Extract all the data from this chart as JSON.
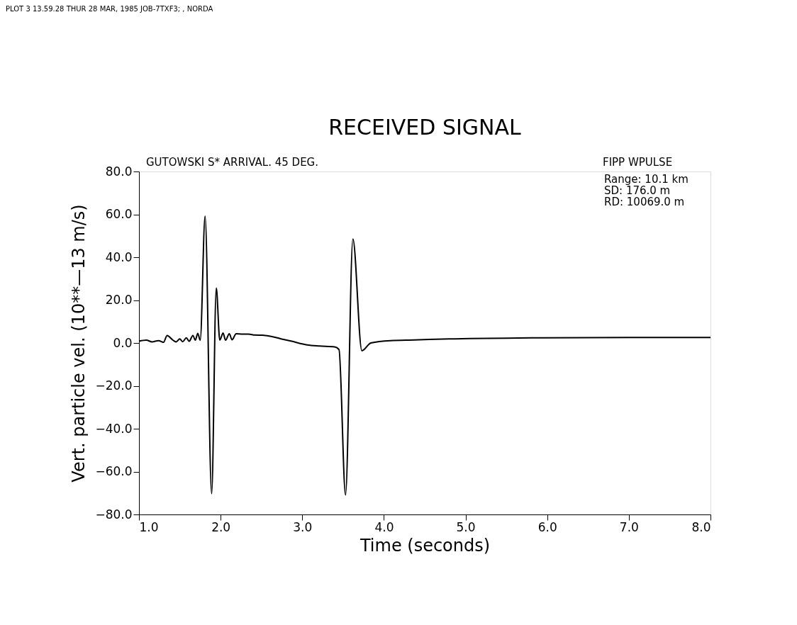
{
  "chart_data": {
    "type": "line",
    "title": "RECEIVED SIGNAL",
    "subtitle": "GUTOWSKI S* ARRIVAL. 45 DEG.",
    "xlabel": "Time (seconds)",
    "ylabel": "Vert. particle vel. (10**—13 m/s)",
    "annotations": [
      "PLOT 3    13.59.28  THUR 28 MAR, 1985    JOB-7TXF3;  ,  NORDA",
      "FIPP  WPULSE",
      "Range:  10.1 km",
      "SD:     176.0 m",
      "RD:  10069.0 m"
    ],
    "series": [
      {
        "color": "#000000",
        "x": [
          1.0,
          1.09,
          1.16,
          1.24,
          1.3,
          1.345,
          1.41,
          1.455,
          1.5,
          1.535,
          1.58,
          1.615,
          1.66,
          1.69,
          1.72,
          1.75,
          1.81,
          1.89,
          1.947,
          1.99,
          2.03,
          2.06,
          2.106,
          2.14,
          2.19,
          2.27,
          2.34,
          2.42,
          2.51,
          2.63,
          2.74,
          2.86,
          3.06,
          3.21,
          3.395,
          3.45,
          3.53,
          3.62,
          3.73,
          3.84,
          4.08,
          4.37,
          4.8,
          5.81,
          7.0,
          8.0
        ],
        "values": [
          0.8,
          1.3,
          0.5,
          1.1,
          0.3,
          3.5,
          1.5,
          0.5,
          1.9,
          0.6,
          2.4,
          0.8,
          3.5,
          1.3,
          4.5,
          1.3,
          59.2,
          -70.3,
          25.6,
          1.3,
          4.6,
          1.3,
          4.3,
          1.5,
          4.3,
          4.1,
          4.1,
          3.7,
          3.6,
          3.0,
          1.9,
          0.9,
          -0.9,
          -1.4,
          -1.8,
          -3.1,
          -70.9,
          48.5,
          -3.6,
          0.0,
          1.1,
          1.4,
          1.9,
          2.4,
          2.6,
          2.6
        ]
      }
    ],
    "xlim": [
      1.0,
      8.0
    ],
    "xticks": [
      {
        "value": 1,
        "label": "1.0"
      },
      {
        "value": 2,
        "label": "2.0"
      },
      {
        "value": 3,
        "label": "3.0"
      },
      {
        "value": 4,
        "label": "4.0"
      },
      {
        "value": 5,
        "label": "5.0"
      },
      {
        "value": 6,
        "label": "6.0"
      },
      {
        "value": 7,
        "label": "7.0"
      },
      {
        "value": 8,
        "label": "8.0"
      }
    ],
    "ylim": [
      -80.0,
      80.0
    ],
    "yticks": [
      {
        "value": -80,
        "label": "−80.0"
      },
      {
        "value": -60,
        "label": "−60.0"
      },
      {
        "value": -40,
        "label": "−40.0"
      },
      {
        "value": -20,
        "label": "−20.0"
      },
      {
        "value": 0,
        "label": "0.0"
      },
      {
        "value": 20,
        "label": "20.0"
      },
      {
        "value": 40,
        "label": "40.0"
      },
      {
        "value": 60,
        "label": "60.0"
      },
      {
        "value": 80,
        "label": "80.0"
      }
    ],
    "grid": false,
    "legend": false,
    "marker": "none",
    "line_style": "solid"
  }
}
